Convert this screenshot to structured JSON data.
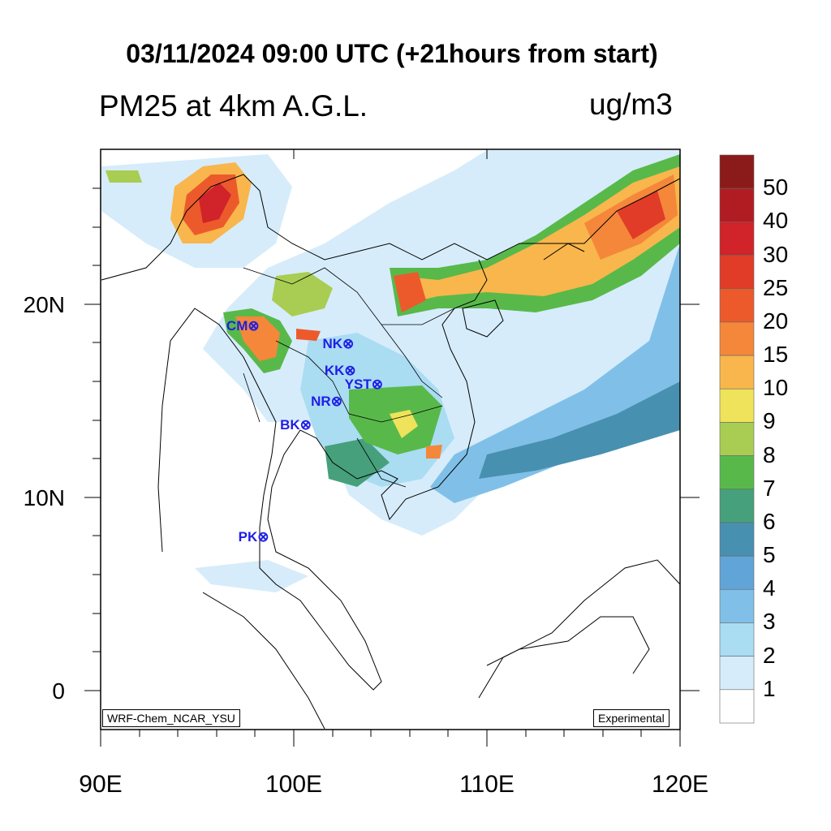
{
  "header": {
    "title": "03/11/2024 09:00 UTC (+21hours from start)",
    "subtitle": "PM25 at 4km A.G.L.",
    "units": "ug/m3"
  },
  "map": {
    "lon_range": [
      90,
      120
    ],
    "lat_range": [
      -2,
      28
    ],
    "lat_labels": [
      "20N",
      "10N",
      "0"
    ],
    "lon_labels": [
      "90E",
      "100E",
      "110E",
      "120E"
    ],
    "model_label": "WRF-Chem_NCAR_YSU",
    "status_label": "Experimental"
  },
  "stations": [
    {
      "id": "CM",
      "lon": 97.8,
      "lat": 18.8
    },
    {
      "id": "NK",
      "lon": 102.7,
      "lat": 17.9
    },
    {
      "id": "KK",
      "lon": 102.8,
      "lat": 16.5
    },
    {
      "id": "YST",
      "lon": 104.2,
      "lat": 15.8
    },
    {
      "id": "NR",
      "lon": 102.1,
      "lat": 14.9
    },
    {
      "id": "BK",
      "lon": 100.5,
      "lat": 13.7
    },
    {
      "id": "PK",
      "lon": 98.3,
      "lat": 7.9
    }
  ],
  "colorbar": {
    "labels": [
      "50",
      "40",
      "30",
      "25",
      "20",
      "15",
      "10",
      "9",
      "8",
      "7",
      "6",
      "5",
      "4",
      "3",
      "2",
      "1"
    ],
    "colors": [
      "#8b1a1a",
      "#b01c22",
      "#d0232a",
      "#e03c28",
      "#ec5a2c",
      "#f4873a",
      "#f8b64c",
      "#eee35a",
      "#a8cd52",
      "#58b94a",
      "#46a07c",
      "#4890b0",
      "#60a4d8",
      "#80c0e8",
      "#aadcf2",
      "#d6ecfa",
      "#ffffff"
    ]
  }
}
